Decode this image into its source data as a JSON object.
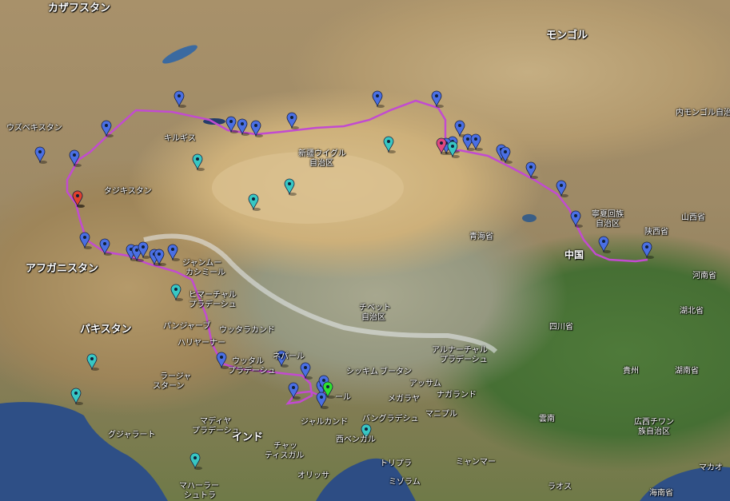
{
  "colors": {
    "route": "#c24bd0",
    "marker_blue": "#4a6fe3",
    "marker_teal": "#38c7c3",
    "marker_red": "#e0402f",
    "marker_pink": "#e0487f",
    "marker_green": "#2fe02f",
    "ocean": "#2e4f86"
  },
  "labels": {
    "kazakhstan": "カザフスタン",
    "mongolia": "モンゴル",
    "inner_mongolia": "内モンゴル自治区",
    "uzbekistan": "ウズベキスタン",
    "kyrgyz": "キルギス",
    "xinjiang_1": "新疆ウイグル",
    "xinjiang_2": "自治区",
    "tajikistan": "タジキスタン",
    "ningxia_1": "寧夏回族",
    "ningxia_2": "自治区",
    "shaanxi": "陝西省",
    "shanxi": "山西省",
    "qinghai": "青海省",
    "china": "中国",
    "henan": "河南省",
    "afghanistan": "アフガニスタン",
    "jammu_1": "ジャンムー",
    "jammu_2": "カシミール",
    "himachal_1": "ヒマーチャル",
    "himachal_2": "プラデーシュ",
    "tibet_1": "チベット",
    "tibet_2": "自治区",
    "hubei": "湖北省",
    "pakistan": "パキスタン",
    "punjab": "パンジャーブ",
    "uttarakhand": "ウッタラカンド",
    "haryana": "ハリヤーナー",
    "sichuan": "四川省",
    "arunachal_1": "アルナーチャル",
    "arunachal_2": "プラデーシュ",
    "nepal": "ネパール",
    "uttar_1": "ウッタル",
    "uttar_2": "プラデーシュ",
    "sikkim": "シッキム",
    "bhutan": "ブータン",
    "assam": "アッサム",
    "guizhou": "貴州",
    "hunan": "湖南省",
    "rajasthan_1": "ラージャ",
    "rajasthan_2": "スターン",
    "meghalaya": "メガラヤ",
    "nagaland": "ナガランド",
    "bihar": "ール",
    "manipur": "マニプル",
    "jharkhand": "ジャルカンド",
    "bangladesh": "バングラデシュ",
    "gujarat": "グジャラート",
    "mp_1": "マディヤ",
    "mp_2": "プラデーシュ",
    "yunnan": "雲南",
    "guangxi_1": "広西チワン",
    "guangxi_2": "族自治区",
    "india": "インド",
    "west_bengal": "西ベンガル",
    "chhattisgarh_1": "チャッ",
    "chhattisgarh_2": "ティスガル",
    "tripura": "トリプラ",
    "myanmar": "ミャンマー",
    "macau": "マカオ",
    "odisha": "オリッサ",
    "mizoram": "ミゾラム",
    "laos": "ラオス",
    "maharashtra_1": "マハーラー",
    "maharashtra_2": "シュトラ",
    "hainan": "海南省"
  },
  "markers": [
    {
      "color": "blue"
    },
    {
      "color": "blue"
    },
    {
      "color": "blue"
    },
    {
      "color": "blue"
    },
    {
      "color": "blue"
    },
    {
      "color": "blue"
    },
    {
      "color": "blue"
    },
    {
      "color": "blue"
    },
    {
      "color": "blue"
    },
    {
      "color": "blue"
    },
    {
      "color": "blue"
    },
    {
      "color": "blue"
    },
    {
      "color": "blue"
    },
    {
      "color": "blue"
    },
    {
      "color": "blue"
    },
    {
      "color": "blue"
    },
    {
      "color": "blue"
    },
    {
      "color": "blue"
    },
    {
      "color": "blue"
    },
    {
      "color": "blue"
    },
    {
      "color": "blue"
    },
    {
      "color": "blue"
    },
    {
      "color": "blue"
    },
    {
      "color": "blue"
    },
    {
      "color": "blue"
    },
    {
      "color": "blue"
    },
    {
      "color": "blue"
    },
    {
      "color": "blue"
    },
    {
      "color": "blue"
    },
    {
      "color": "blue"
    },
    {
      "color": "blue"
    },
    {
      "color": "blue"
    },
    {
      "color": "blue"
    },
    {
      "color": "blue"
    },
    {
      "color": "blue"
    },
    {
      "color": "blue"
    },
    {
      "color": "blue"
    },
    {
      "color": "blue"
    },
    {
      "color": "teal"
    },
    {
      "color": "teal"
    },
    {
      "color": "teal"
    },
    {
      "color": "teal"
    },
    {
      "color": "teal"
    },
    {
      "color": "teal"
    },
    {
      "color": "teal"
    },
    {
      "color": "teal"
    },
    {
      "color": "teal"
    },
    {
      "color": "teal"
    },
    {
      "color": "red"
    },
    {
      "color": "pink"
    },
    {
      "color": "green"
    }
  ]
}
